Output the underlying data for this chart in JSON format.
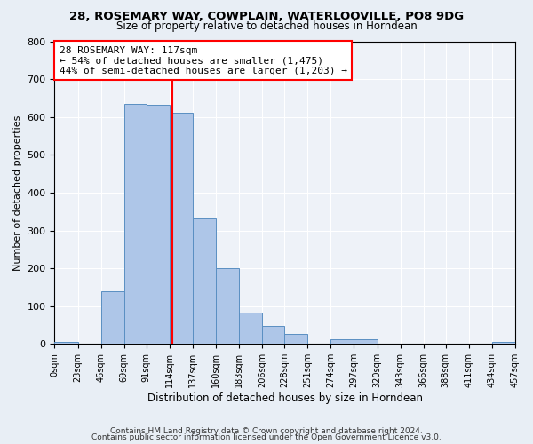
{
  "title": "28, ROSEMARY WAY, COWPLAIN, WATERLOOVILLE, PO8 9DG",
  "subtitle": "Size of property relative to detached houses in Horndean",
  "xlabel": "Distribution of detached houses by size in Horndean",
  "ylabel": "Number of detached properties",
  "bar_edges": [
    0,
    23,
    46,
    69,
    91,
    114,
    137,
    160,
    183,
    206,
    228,
    251,
    274,
    297,
    320,
    343,
    366,
    388,
    411,
    434,
    457
  ],
  "bar_heights": [
    5,
    0,
    140,
    635,
    632,
    610,
    332,
    200,
    83,
    47,
    27,
    0,
    12,
    12,
    0,
    0,
    0,
    0,
    0,
    5
  ],
  "bar_color": "#aec6e8",
  "bar_edgecolor": "#5a8fc2",
  "property_line_x": 117,
  "property_line_color": "red",
  "annotation_line1": "28 ROSEMARY WAY: 117sqm",
  "annotation_line2": "← 54% of detached houses are smaller (1,475)",
  "annotation_line3": "44% of semi-detached houses are larger (1,203) →",
  "annotation_box_color": "white",
  "annotation_box_edgecolor": "red",
  "ylim": [
    0,
    800
  ],
  "yticks": [
    0,
    100,
    200,
    300,
    400,
    500,
    600,
    700,
    800
  ],
  "tick_labels": [
    "0sqm",
    "23sqm",
    "46sqm",
    "69sqm",
    "91sqm",
    "114sqm",
    "137sqm",
    "160sqm",
    "183sqm",
    "206sqm",
    "228sqm",
    "251sqm",
    "274sqm",
    "297sqm",
    "320sqm",
    "343sqm",
    "366sqm",
    "388sqm",
    "411sqm",
    "434sqm",
    "457sqm"
  ],
  "footer_line1": "Contains HM Land Registry data © Crown copyright and database right 2024.",
  "footer_line2": "Contains public sector information licensed under the Open Government Licence v3.0.",
  "bg_color": "#e8eef5",
  "plot_bg_color": "#eef2f8"
}
